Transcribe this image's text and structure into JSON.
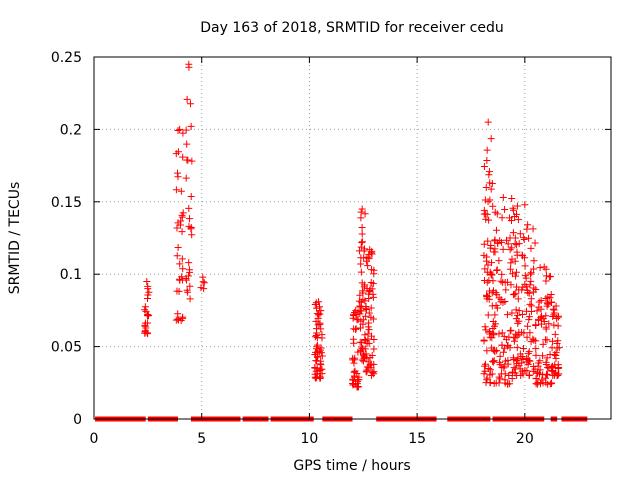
{
  "chart_data": {
    "type": "scatter",
    "title": "Day 163 of 2018, SRMTID for receiver cedu",
    "xlabel": "GPS time / hours",
    "ylabel": "SRMTID / TECUs",
    "xlim": [
      0,
      24
    ],
    "ylim": [
      0,
      0.25
    ],
    "x_ticks": [
      0,
      5,
      10,
      15,
      20
    ],
    "x_tick_labels": [
      "0",
      "5",
      "10",
      "15",
      "20"
    ],
    "y_ticks": [
      0,
      0.05,
      0.1,
      0.15,
      0.2,
      0.25
    ],
    "y_tick_labels": [
      "0",
      "0.05",
      "0.1",
      "0.15",
      "0.2",
      "0.25"
    ],
    "grid": true,
    "marker": "+",
    "color": "#ff0000",
    "series": [
      {
        "name": "SRMTID",
        "zero_segments": [
          [
            0.05,
            2.4
          ],
          [
            2.5,
            3.9
          ],
          [
            4.5,
            6.8
          ],
          [
            6.9,
            8.1
          ],
          [
            8.2,
            10.2
          ],
          [
            10.6,
            12.0
          ],
          [
            13.1,
            15.9
          ],
          [
            16.4,
            18.4
          ],
          [
            18.5,
            20.9
          ],
          [
            21.2,
            21.5
          ],
          [
            21.7,
            22.9
          ]
        ],
        "clusters": [
          {
            "x": [
              2.35,
              2.55
            ],
            "y": [
              0.059,
              0.095
            ],
            "n": 22
          },
          {
            "x": [
              3.8,
              4.15
            ],
            "y": [
              0.068,
              0.2
            ],
            "n": 34
          },
          {
            "x": [
              4.25,
              4.55
            ],
            "y": [
              0.083,
              0.245
            ],
            "n": 26
          },
          {
            "x": [
              4.95,
              5.15
            ],
            "y": [
              0.09,
              0.098
            ],
            "n": 3
          },
          {
            "x": [
              10.25,
              10.6
            ],
            "y": [
              0.028,
              0.081
            ],
            "n": 55
          },
          {
            "x": [
              12.0,
              12.3
            ],
            "y": [
              0.022,
              0.075
            ],
            "n": 40
          },
          {
            "x": [
              12.3,
              12.6
            ],
            "y": [
              0.04,
              0.145
            ],
            "n": 50
          },
          {
            "x": [
              12.6,
              13.0
            ],
            "y": [
              0.03,
              0.117
            ],
            "n": 60
          },
          {
            "x": [
              18.1,
              18.5
            ],
            "y": [
              0.025,
              0.205
            ],
            "n": 70
          },
          {
            "x": [
              18.5,
              19.5
            ],
            "y": [
              0.024,
              0.153
            ],
            "n": 110
          },
          {
            "x": [
              19.5,
              20.5
            ],
            "y": [
              0.03,
              0.148
            ],
            "n": 110
          },
          {
            "x": [
              20.5,
              21.3
            ],
            "y": [
              0.024,
              0.105
            ],
            "n": 80
          },
          {
            "x": [
              21.3,
              21.6
            ],
            "y": [
              0.03,
              0.078
            ],
            "n": 30
          }
        ]
      }
    ]
  }
}
